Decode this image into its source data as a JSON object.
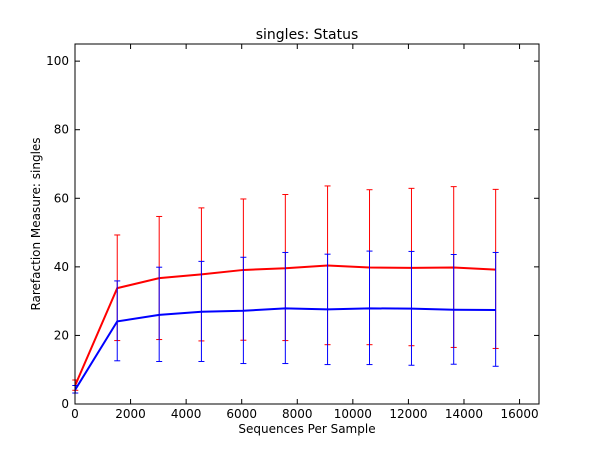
{
  "chart_data": {
    "type": "line",
    "title": "singles: Status",
    "xlabel": "Sequences Per Sample",
    "ylabel": "Rarefaction Measure: singles",
    "xlim": [
      0,
      16700
    ],
    "ylim": [
      0,
      105
    ],
    "xticks": [
      "0",
      "2000",
      "4000",
      "6000",
      "8000",
      "10000",
      "12000",
      "14000",
      "16000"
    ],
    "xtick_values": [
      0,
      2000,
      4000,
      6000,
      8000,
      10000,
      12000,
      14000,
      16000
    ],
    "yticks": [
      "0",
      "20",
      "40",
      "60",
      "80",
      "100"
    ],
    "ytick_values": [
      0,
      20,
      40,
      60,
      80,
      100
    ],
    "grid": false,
    "x": [
      10,
      1520,
      3030,
      4550,
      6060,
      7570,
      9090,
      10600,
      12110,
      13630,
      15140
    ],
    "series": [
      {
        "color": "#ff0000",
        "values": [
          5.5,
          33.8,
          36.7,
          37.8,
          39.1,
          39.6,
          40.4,
          39.8,
          39.7,
          39.8,
          39.2
        ],
        "error_low": [
          4.0,
          18.5,
          18.8,
          18.4,
          18.6,
          18.5,
          17.3,
          17.3,
          17.0,
          16.5,
          16.2
        ],
        "error_high": [
          7.0,
          49.3,
          54.7,
          57.2,
          59.8,
          61.1,
          63.6,
          62.5,
          62.9,
          63.4,
          62.6
        ]
      },
      {
        "color": "#0000ff",
        "values": [
          4.2,
          24.1,
          26.0,
          26.9,
          27.2,
          27.9,
          27.6,
          27.9,
          27.8,
          27.5,
          27.4
        ],
        "error_low": [
          3.2,
          12.6,
          12.4,
          12.4,
          11.8,
          11.8,
          11.5,
          11.5,
          11.3,
          11.6,
          11.0
        ],
        "error_high": [
          5.4,
          35.9,
          39.9,
          41.6,
          42.8,
          44.2,
          43.7,
          44.6,
          44.5,
          43.6,
          44.2
        ]
      }
    ]
  }
}
